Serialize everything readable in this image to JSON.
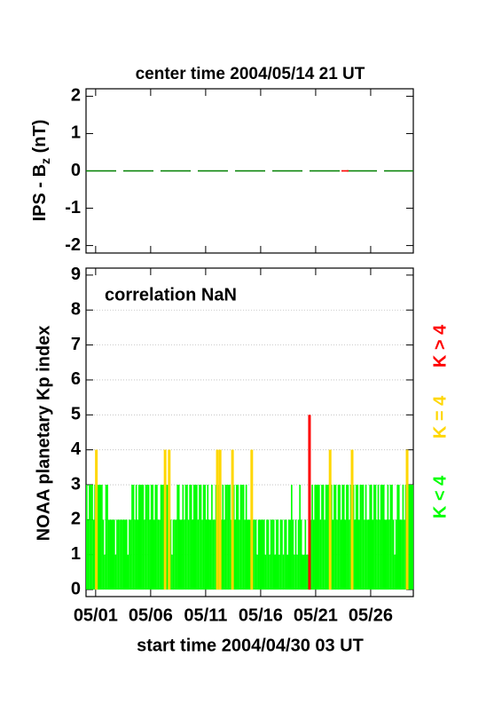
{
  "chart_data": [
    {
      "type": "line",
      "title": "center time 2004/05/14 21 UT",
      "ylabel_parts": [
        "IPS - B",
        "z",
        " (nT)"
      ],
      "xlim": [
        0,
        29.75
      ],
      "xticks": [
        0.875,
        5.875,
        10.875,
        15.875,
        20.875,
        25.875
      ],
      "ylim": [
        -2.2,
        2.2
      ],
      "yticks": [
        -2,
        -1,
        0,
        1,
        2
      ],
      "x": [
        0,
        29.75
      ],
      "series": [
        {
          "color": "#008000",
          "dash": "34 8",
          "values": [
            0,
            0
          ]
        },
        {
          "color": "#ff0000",
          "dash": "8 300",
          "values": [
            0,
            0
          ]
        }
      ]
    },
    {
      "type": "bar",
      "annotation": "correlation NaN",
      "xlabel": "start time 2004/04/30 03 UT",
      "ylabel": "NOAA planetary Kp index",
      "xlim": [
        0,
        29.75
      ],
      "xticks": [
        {
          "value": 0.875,
          "label": "05/01"
        },
        {
          "value": 5.875,
          "label": "05/06"
        },
        {
          "value": 10.875,
          "label": "05/11"
        },
        {
          "value": 15.875,
          "label": "05/16"
        },
        {
          "value": 20.875,
          "label": "05/21"
        },
        {
          "value": 25.875,
          "label": "05/26"
        }
      ],
      "ylim": [
        -0.2,
        9.2
      ],
      "yticks": [
        0,
        1,
        2,
        3,
        4,
        5,
        6,
        7,
        8,
        9
      ],
      "grid": true,
      "threshold": 4,
      "bin_width": 0.125,
      "legend": [
        {
          "label": "K < 4",
          "color": "#00ff00"
        },
        {
          "label": "K = 4",
          "color": "#ffd700"
        },
        {
          "label": "K > 4",
          "color": "#ff0000"
        }
      ],
      "x": [
        0,
        0.125,
        0.25,
        0.375,
        0.5,
        0.625,
        0.75,
        0.875,
        1,
        1.125,
        1.25,
        1.375,
        1.5,
        1.625,
        1.75,
        1.875,
        2,
        2.125,
        2.25,
        2.375,
        2.5,
        2.625,
        2.75,
        2.875,
        3,
        3.125,
        3.25,
        3.375,
        3.5,
        3.625,
        3.75,
        3.875,
        4,
        4.125,
        4.25,
        4.375,
        4.5,
        4.625,
        4.75,
        4.875,
        5,
        5.125,
        5.25,
        5.375,
        5.5,
        5.625,
        5.75,
        5.875,
        6,
        6.125,
        6.25,
        6.375,
        6.5,
        6.625,
        6.75,
        6.875,
        7,
        7.125,
        7.25,
        7.375,
        7.5,
        7.625,
        7.75,
        7.875,
        8,
        8.125,
        8.25,
        8.375,
        8.5,
        8.625,
        8.75,
        8.875,
        9,
        9.125,
        9.25,
        9.375,
        9.5,
        9.625,
        9.75,
        9.875,
        10,
        10.125,
        10.25,
        10.375,
        10.5,
        10.625,
        10.75,
        10.875,
        11,
        11.125,
        11.25,
        11.375,
        11.5,
        11.625,
        11.75,
        11.875,
        12,
        12.125,
        12.25,
        12.375,
        12.5,
        12.625,
        12.75,
        12.875,
        13,
        13.125,
        13.25,
        13.375,
        13.5,
        13.625,
        13.75,
        13.875,
        14,
        14.125,
        14.25,
        14.375,
        14.5,
        14.625,
        14.75,
        14.875,
        15,
        15.125,
        15.25,
        15.375,
        15.5,
        15.625,
        15.75,
        15.875,
        16,
        16.125,
        16.25,
        16.375,
        16.5,
        16.625,
        16.75,
        16.875,
        17,
        17.125,
        17.25,
        17.375,
        17.5,
        17.625,
        17.75,
        17.875,
        18,
        18.125,
        18.25,
        18.375,
        18.5,
        18.625,
        18.75,
        18.875,
        19,
        19.125,
        19.25,
        19.375,
        19.5,
        19.625,
        19.75,
        19.875,
        20,
        20.125,
        20.25,
        20.375,
        20.5,
        20.625,
        20.75,
        20.875,
        21,
        21.125,
        21.25,
        21.375,
        21.5,
        21.625,
        21.75,
        21.875,
        22,
        22.125,
        22.25,
        22.375,
        22.5,
        22.625,
        22.75,
        22.875,
        23,
        23.125,
        23.25,
        23.375,
        23.5,
        23.625,
        23.75,
        23.875,
        24,
        24.125,
        24.25,
        24.375,
        24.5,
        24.625,
        24.75,
        24.875,
        25,
        25.125,
        25.25,
        25.375,
        25.5,
        25.625,
        25.75,
        25.875,
        26,
        26.125,
        26.25,
        26.375,
        26.5,
        26.625,
        26.75,
        26.875,
        27,
        27.125,
        27.25,
        27.375,
        27.5,
        27.625,
        27.75,
        27.875,
        28,
        28.125,
        28.25,
        28.375,
        28.5,
        28.625,
        28.75,
        28.875,
        29,
        29.125,
        29.25,
        29.375,
        29.5,
        29.625
      ],
      "values": [
        3,
        2,
        3,
        3,
        3,
        2,
        3,
        4,
        3,
        3,
        3,
        3,
        2,
        1,
        3,
        3,
        2,
        2,
        2,
        2,
        2,
        1,
        2,
        2,
        2,
        2,
        2,
        2,
        2,
        2,
        1,
        2,
        2,
        3,
        3,
        2,
        3,
        2,
        3,
        3,
        3,
        3,
        2,
        3,
        3,
        3,
        2,
        3,
        3,
        2,
        3,
        3,
        2,
        2,
        3,
        3,
        3,
        4,
        3,
        3,
        4,
        2,
        1,
        2,
        2,
        2,
        3,
        3,
        2,
        2,
        3,
        2,
        3,
        3,
        2,
        3,
        3,
        2,
        3,
        3,
        3,
        2,
        3,
        3,
        2,
        3,
        3,
        2,
        3,
        2,
        2,
        3,
        2,
        2,
        3,
        4,
        3,
        4,
        2,
        3,
        2,
        3,
        3,
        3,
        3,
        2,
        4,
        3,
        2,
        3,
        3,
        2,
        3,
        3,
        3,
        2,
        3,
        2,
        2,
        2,
        4,
        2,
        2,
        2,
        1,
        2,
        2,
        2,
        2,
        2,
        1,
        2,
        2,
        1,
        2,
        2,
        2,
        1,
        2,
        2,
        1,
        2,
        2,
        1,
        2,
        2,
        1,
        2,
        2,
        3,
        2,
        1,
        2,
        1,
        2,
        3,
        2,
        1,
        1,
        2,
        1,
        1,
        5,
        2,
        3,
        2,
        3,
        3,
        3,
        3,
        2,
        3,
        3,
        2,
        3,
        3,
        3,
        4,
        3,
        2,
        3,
        3,
        2,
        3,
        3,
        2,
        3,
        3,
        2,
        3,
        3,
        2,
        3,
        4,
        3,
        2,
        3,
        3,
        2,
        3,
        3,
        3,
        2,
        3,
        2,
        2,
        3,
        3,
        2,
        3,
        3,
        2,
        3,
        2,
        3,
        3,
        3,
        2,
        2,
        3,
        2,
        3,
        3,
        2,
        1,
        2,
        3,
        3,
        2,
        2,
        3,
        2,
        3,
        4,
        3,
        3,
        3,
        3
      ]
    }
  ]
}
